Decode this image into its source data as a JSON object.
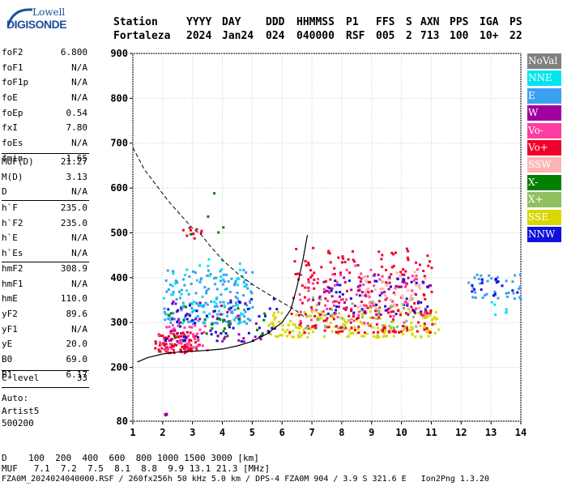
{
  "logo": {
    "line1": "Lowell",
    "line2": "DIGISONDE"
  },
  "header": {
    "row1": [
      "Station",
      "YYYY",
      "DAY",
      "DDD",
      "HHMMSS",
      "P1",
      "FFS",
      "S",
      "AXN",
      "PPS",
      "IGA",
      "PS"
    ],
    "row2": [
      "Fortaleza",
      "2024",
      "Jan24",
      "024",
      "040000",
      "RSF",
      "005",
      "2",
      "713",
      "100",
      "10+",
      "22"
    ]
  },
  "params_group1": [
    {
      "key": "foF2",
      "value": "6.800"
    },
    {
      "key": "foF1",
      "value": "N/A"
    },
    {
      "key": "foF1p",
      "value": "N/A"
    },
    {
      "key": "foE",
      "value": "N/A"
    },
    {
      "key": "foEp",
      "value": "0.54"
    },
    {
      "key": "fxI",
      "value": "7.80"
    },
    {
      "key": "foEs",
      "value": "N/A"
    },
    {
      "key": "fmin",
      "value": "1.65"
    }
  ],
  "params_group2": [
    {
      "key": "MUF(D)",
      "value": "21.27"
    },
    {
      "key": "M(D)",
      "value": "3.13"
    },
    {
      "key": "D",
      "value": "N/A"
    }
  ],
  "params_group3": [
    {
      "key": "h`F",
      "value": "235.0"
    },
    {
      "key": "h`F2",
      "value": "235.0"
    },
    {
      "key": "h`E",
      "value": "N/A"
    },
    {
      "key": "h`Es",
      "value": "N/A"
    }
  ],
  "params_group4": [
    {
      "key": "hmF2",
      "value": "308.9"
    },
    {
      "key": "hmF1",
      "value": "N/A"
    },
    {
      "key": "hmE",
      "value": "110.0"
    },
    {
      "key": "yF2",
      "value": "89.6"
    },
    {
      "key": "yF1",
      "value": "N/A"
    },
    {
      "key": "yE",
      "value": "20.0"
    },
    {
      "key": "B0",
      "value": "69.0"
    },
    {
      "key": "B1",
      "value": "6.17"
    }
  ],
  "params_group5": [
    {
      "key": "C-level",
      "value": "33"
    }
  ],
  "auto": {
    "line1": "Auto:",
    "line2": "Artist5",
    "line3": "500200"
  },
  "legend": [
    {
      "label": "NoVal",
      "color": "#808080"
    },
    {
      "label": "NNE",
      "color": "#00e5ee"
    },
    {
      "label": "E",
      "color": "#3aa0f0"
    },
    {
      "label": "W",
      "color": "#a000a0"
    },
    {
      "label": "Vo-",
      "color": "#ff3ca0"
    },
    {
      "label": "Vo+",
      "color": "#f00028"
    },
    {
      "label": "SSW",
      "color": "#ffb4b4"
    },
    {
      "label": "X-",
      "color": "#008000"
    },
    {
      "label": "X+",
      "color": "#90c060"
    },
    {
      "label": "SSE",
      "color": "#d8d800"
    },
    {
      "label": "NNW",
      "color": "#1010e0"
    }
  ],
  "bottom": {
    "d_row": "D    100  200  400  600  800 1000 1500 3000 [km]",
    "muf_row": "MUF   7.1  7.2  7.5  8.1  8.8  9.9 13.1 21.3 [MHz]",
    "file_row": "FZA0M_2024024040000.RSF / 260fx256h 50 kHz 5.0 km / DPS-4 FZA0M 904 / 3.9 S 321.6 E   Ion2Png 1.3.20"
  },
  "chart_data": {
    "type": "scatter",
    "xlim": [
      1,
      14
    ],
    "ylim": [
      80,
      900
    ],
    "x_ticks": [
      1,
      2,
      3,
      4,
      5,
      6,
      7,
      8,
      9,
      10,
      11,
      12,
      13,
      14
    ],
    "y_ticks": [
      80,
      200,
      300,
      400,
      500,
      600,
      700,
      800,
      900
    ],
    "grid": true,
    "legend_position": "right",
    "trace_curve": {
      "x": [
        1.15,
        1.5,
        2.0,
        2.5,
        3.0,
        3.5,
        4.0,
        4.5,
        5.0,
        5.5,
        6.0,
        6.3,
        6.5,
        6.7,
        6.85
      ],
      "y": [
        212,
        222,
        230,
        234,
        236,
        238,
        241,
        248,
        258,
        275,
        300,
        330,
        380,
        440,
        495
      ]
    },
    "profile_curve": {
      "x": [
        1.0,
        1.4,
        1.8,
        2.2,
        2.6,
        3.0,
        3.3,
        3.6,
        4.0,
        4.5,
        5.0,
        5.5,
        6.0,
        6.4,
        6.8
      ],
      "y": [
        690,
        640,
        605,
        570,
        540,
        510,
        495,
        470,
        440,
        410,
        385,
        365,
        345,
        330,
        310
      ]
    },
    "clusters": [
      {
        "color": "#f00028",
        "x": [
          1.7,
          3.2
        ],
        "y": [
          235,
          280
        ],
        "n": 90
      },
      {
        "color": "#ff3ca0",
        "x": [
          1.8,
          3.5
        ],
        "y": [
          240,
          300
        ],
        "n": 50
      },
      {
        "color": "#3aa0f0",
        "x": [
          2.0,
          5.0
        ],
        "y": [
          300,
          420
        ],
        "n": 160
      },
      {
        "color": "#00e5ee",
        "x": [
          2.0,
          4.8
        ],
        "y": [
          300,
          450
        ],
        "n": 60
      },
      {
        "color": "#a000a0",
        "x": [
          2.2,
          5.6
        ],
        "y": [
          260,
          360
        ],
        "n": 45
      },
      {
        "color": "#1010e0",
        "x": [
          2.0,
          5.8
        ],
        "y": [
          260,
          360
        ],
        "n": 50
      },
      {
        "color": "#008000",
        "x": [
          2.0,
          5.5
        ],
        "y": [
          270,
          340
        ],
        "n": 25
      },
      {
        "color": "#d8d800",
        "x": [
          5.5,
          11.3
        ],
        "y": [
          270,
          330
        ],
        "n": 180
      },
      {
        "color": "#f00028",
        "x": [
          6.2,
          11.0
        ],
        "y": [
          280,
          470
        ],
        "n": 220
      },
      {
        "color": "#ff3ca0",
        "x": [
          6.5,
          10.8
        ],
        "y": [
          300,
          430
        ],
        "n": 80
      },
      {
        "color": "#ffb4b4",
        "x": [
          8.5,
          10.8
        ],
        "y": [
          330,
          420
        ],
        "n": 60
      },
      {
        "color": "#a000a0",
        "x": [
          7.0,
          11.0
        ],
        "y": [
          320,
          410
        ],
        "n": 50
      },
      {
        "color": "#1010e0",
        "x": [
          7.5,
          11.0
        ],
        "y": [
          320,
          400
        ],
        "n": 40
      },
      {
        "color": "#90c060",
        "x": [
          6.5,
          10.5
        ],
        "y": [
          290,
          360
        ],
        "n": 40
      },
      {
        "color": "#f00028",
        "x": [
          2.6,
          3.3
        ],
        "y": [
          490,
          515
        ],
        "n": 10
      },
      {
        "color": "#3aa0f0",
        "x": [
          12.2,
          14.0
        ],
        "y": [
          355,
          410
        ],
        "n": 35
      },
      {
        "color": "#1010e0",
        "x": [
          12.2,
          14.0
        ],
        "y": [
          360,
          400
        ],
        "n": 15
      },
      {
        "color": "#00e5ee",
        "x": [
          12.5,
          13.5
        ],
        "y": [
          320,
          350
        ],
        "n": 6
      },
      {
        "color": "#008000",
        "x": [
          2.5,
          4.0
        ],
        "y": [
          480,
          620
        ],
        "n": 5
      },
      {
        "color": "#a000a0",
        "x": [
          1.9,
          2.1
        ],
        "y": [
          95,
          100
        ],
        "n": 4
      }
    ]
  }
}
